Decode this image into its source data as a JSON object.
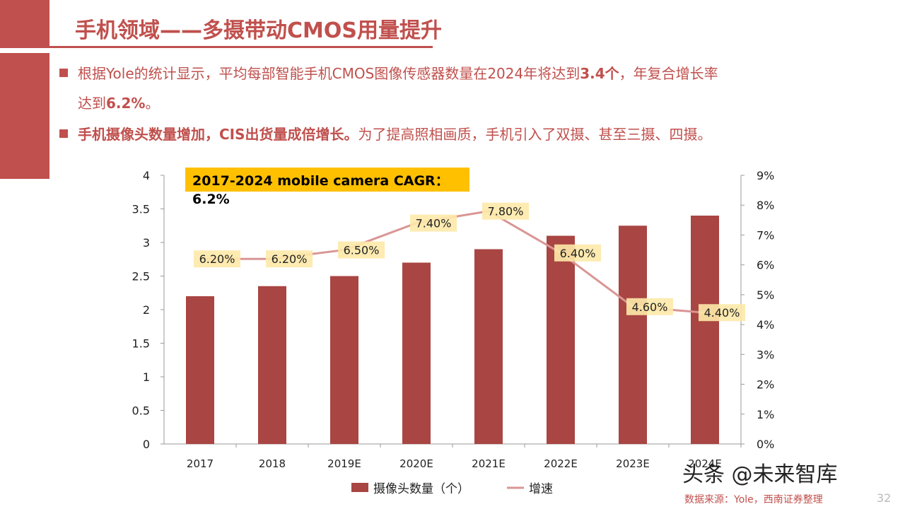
{
  "title": "手机领域——多摄带动CMOS用量提升",
  "bullets": [
    {
      "pre": "根据Yole的统计显示，平均每部智能手机CMOS图像传感器数量在2024年将达到",
      "b1": "3.4个",
      "mid": "，年复合增长率",
      "line2": "达到",
      "b2": "6.2%",
      "post": "。"
    },
    {
      "b1": "手机摄像头数量增加，CIS出货量成倍增长。",
      "rest": "为了提高照相画质，手机引入了双摄、甚至三摄、四摄。"
    }
  ],
  "source": "数据来源：Yole，西南证券整理",
  "watermark": "头条 @未来智库",
  "page_number": "32",
  "chart_data": {
    "type": "bar+line",
    "categories": [
      "2017",
      "2018",
      "2019E",
      "2020E",
      "2021E",
      "2022E",
      "2023E",
      "2024E"
    ],
    "series": [
      {
        "name": "摄像头数量（个）",
        "type": "bar",
        "axis": "left",
        "values": [
          2.2,
          2.35,
          2.5,
          2.7,
          2.9,
          3.1,
          3.25,
          3.4
        ],
        "color": "#a94542"
      },
      {
        "name": "增速",
        "type": "line",
        "axis": "right",
        "values": [
          6.2,
          6.2,
          6.5,
          7.4,
          7.8,
          6.4,
          4.6,
          4.4
        ],
        "labels": [
          "6.20%",
          "6.20%",
          "6.50%",
          "7.40%",
          "7.80%",
          "6.40%",
          "4.60%",
          "4.40%"
        ],
        "color": "#d99694"
      }
    ],
    "left_ylim": [
      0,
      4
    ],
    "left_ticks": [
      "0",
      "0.5",
      "1",
      "1.5",
      "2",
      "2.5",
      "3",
      "3.5",
      "4"
    ],
    "right_ylim": [
      0,
      9
    ],
    "right_ticks": [
      "0%",
      "1%",
      "2%",
      "3%",
      "4%",
      "5%",
      "6%",
      "7%",
      "8%",
      "9%"
    ],
    "annotation": {
      "line1": "2017-2024 mobile camera CAGR：",
      "line2": "6.2%",
      "color": "#ffc000"
    },
    "legend": "bottom",
    "grid": false
  }
}
